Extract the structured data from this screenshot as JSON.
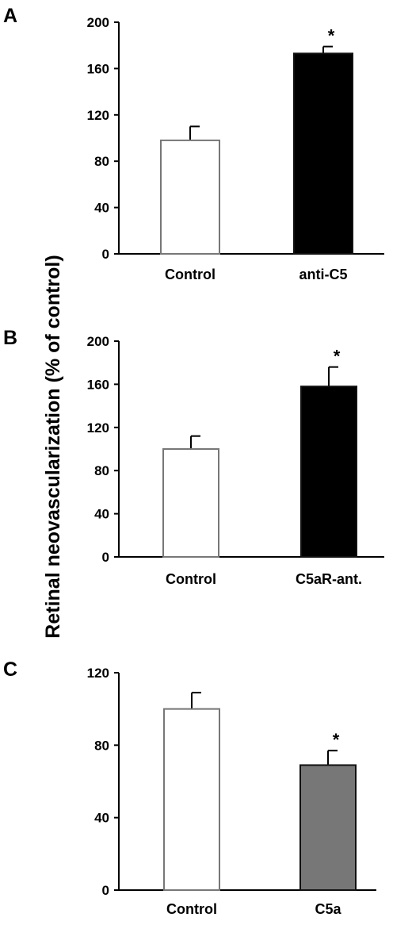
{
  "ylabel": "Retinal neovascularization (% of control)",
  "chart_data": [
    {
      "type": "bar",
      "panel": "A",
      "categories": [
        "Control",
        "anti-C5"
      ],
      "values": [
        98,
        173
      ],
      "errors": [
        12,
        6
      ],
      "colors": [
        "#ffffff",
        "#000000"
      ],
      "significance": [
        "",
        "*"
      ],
      "ylim": [
        0,
        200
      ],
      "yticks": [
        "0",
        "40",
        "80",
        "120",
        "160",
        "200"
      ],
      "ylabel": "Retinal neovascularization (% of control)",
      "grid": false
    },
    {
      "type": "bar",
      "panel": "B",
      "categories": [
        "Control",
        "C5aR-ant."
      ],
      "values": [
        100,
        158
      ],
      "errors": [
        12,
        18
      ],
      "colors": [
        "#ffffff",
        "#000000"
      ],
      "significance": [
        "",
        "*"
      ],
      "ylim": [
        0,
        200
      ],
      "yticks": [
        "0",
        "40",
        "80",
        "120",
        "160",
        "200"
      ],
      "ylabel": "Retinal neovascularization (% of control)",
      "grid": false
    },
    {
      "type": "bar",
      "panel": "C",
      "categories": [
        "Control",
        "C5a"
      ],
      "values": [
        100,
        69
      ],
      "errors": [
        9,
        8
      ],
      "colors": [
        "#ffffff",
        "#777777"
      ],
      "significance": [
        "",
        "*"
      ],
      "ylim": [
        0,
        120
      ],
      "yticks": [
        "0",
        "40",
        "80",
        "120"
      ],
      "ylabel": "Retinal neovascularization (% of control)",
      "grid": false
    }
  ]
}
